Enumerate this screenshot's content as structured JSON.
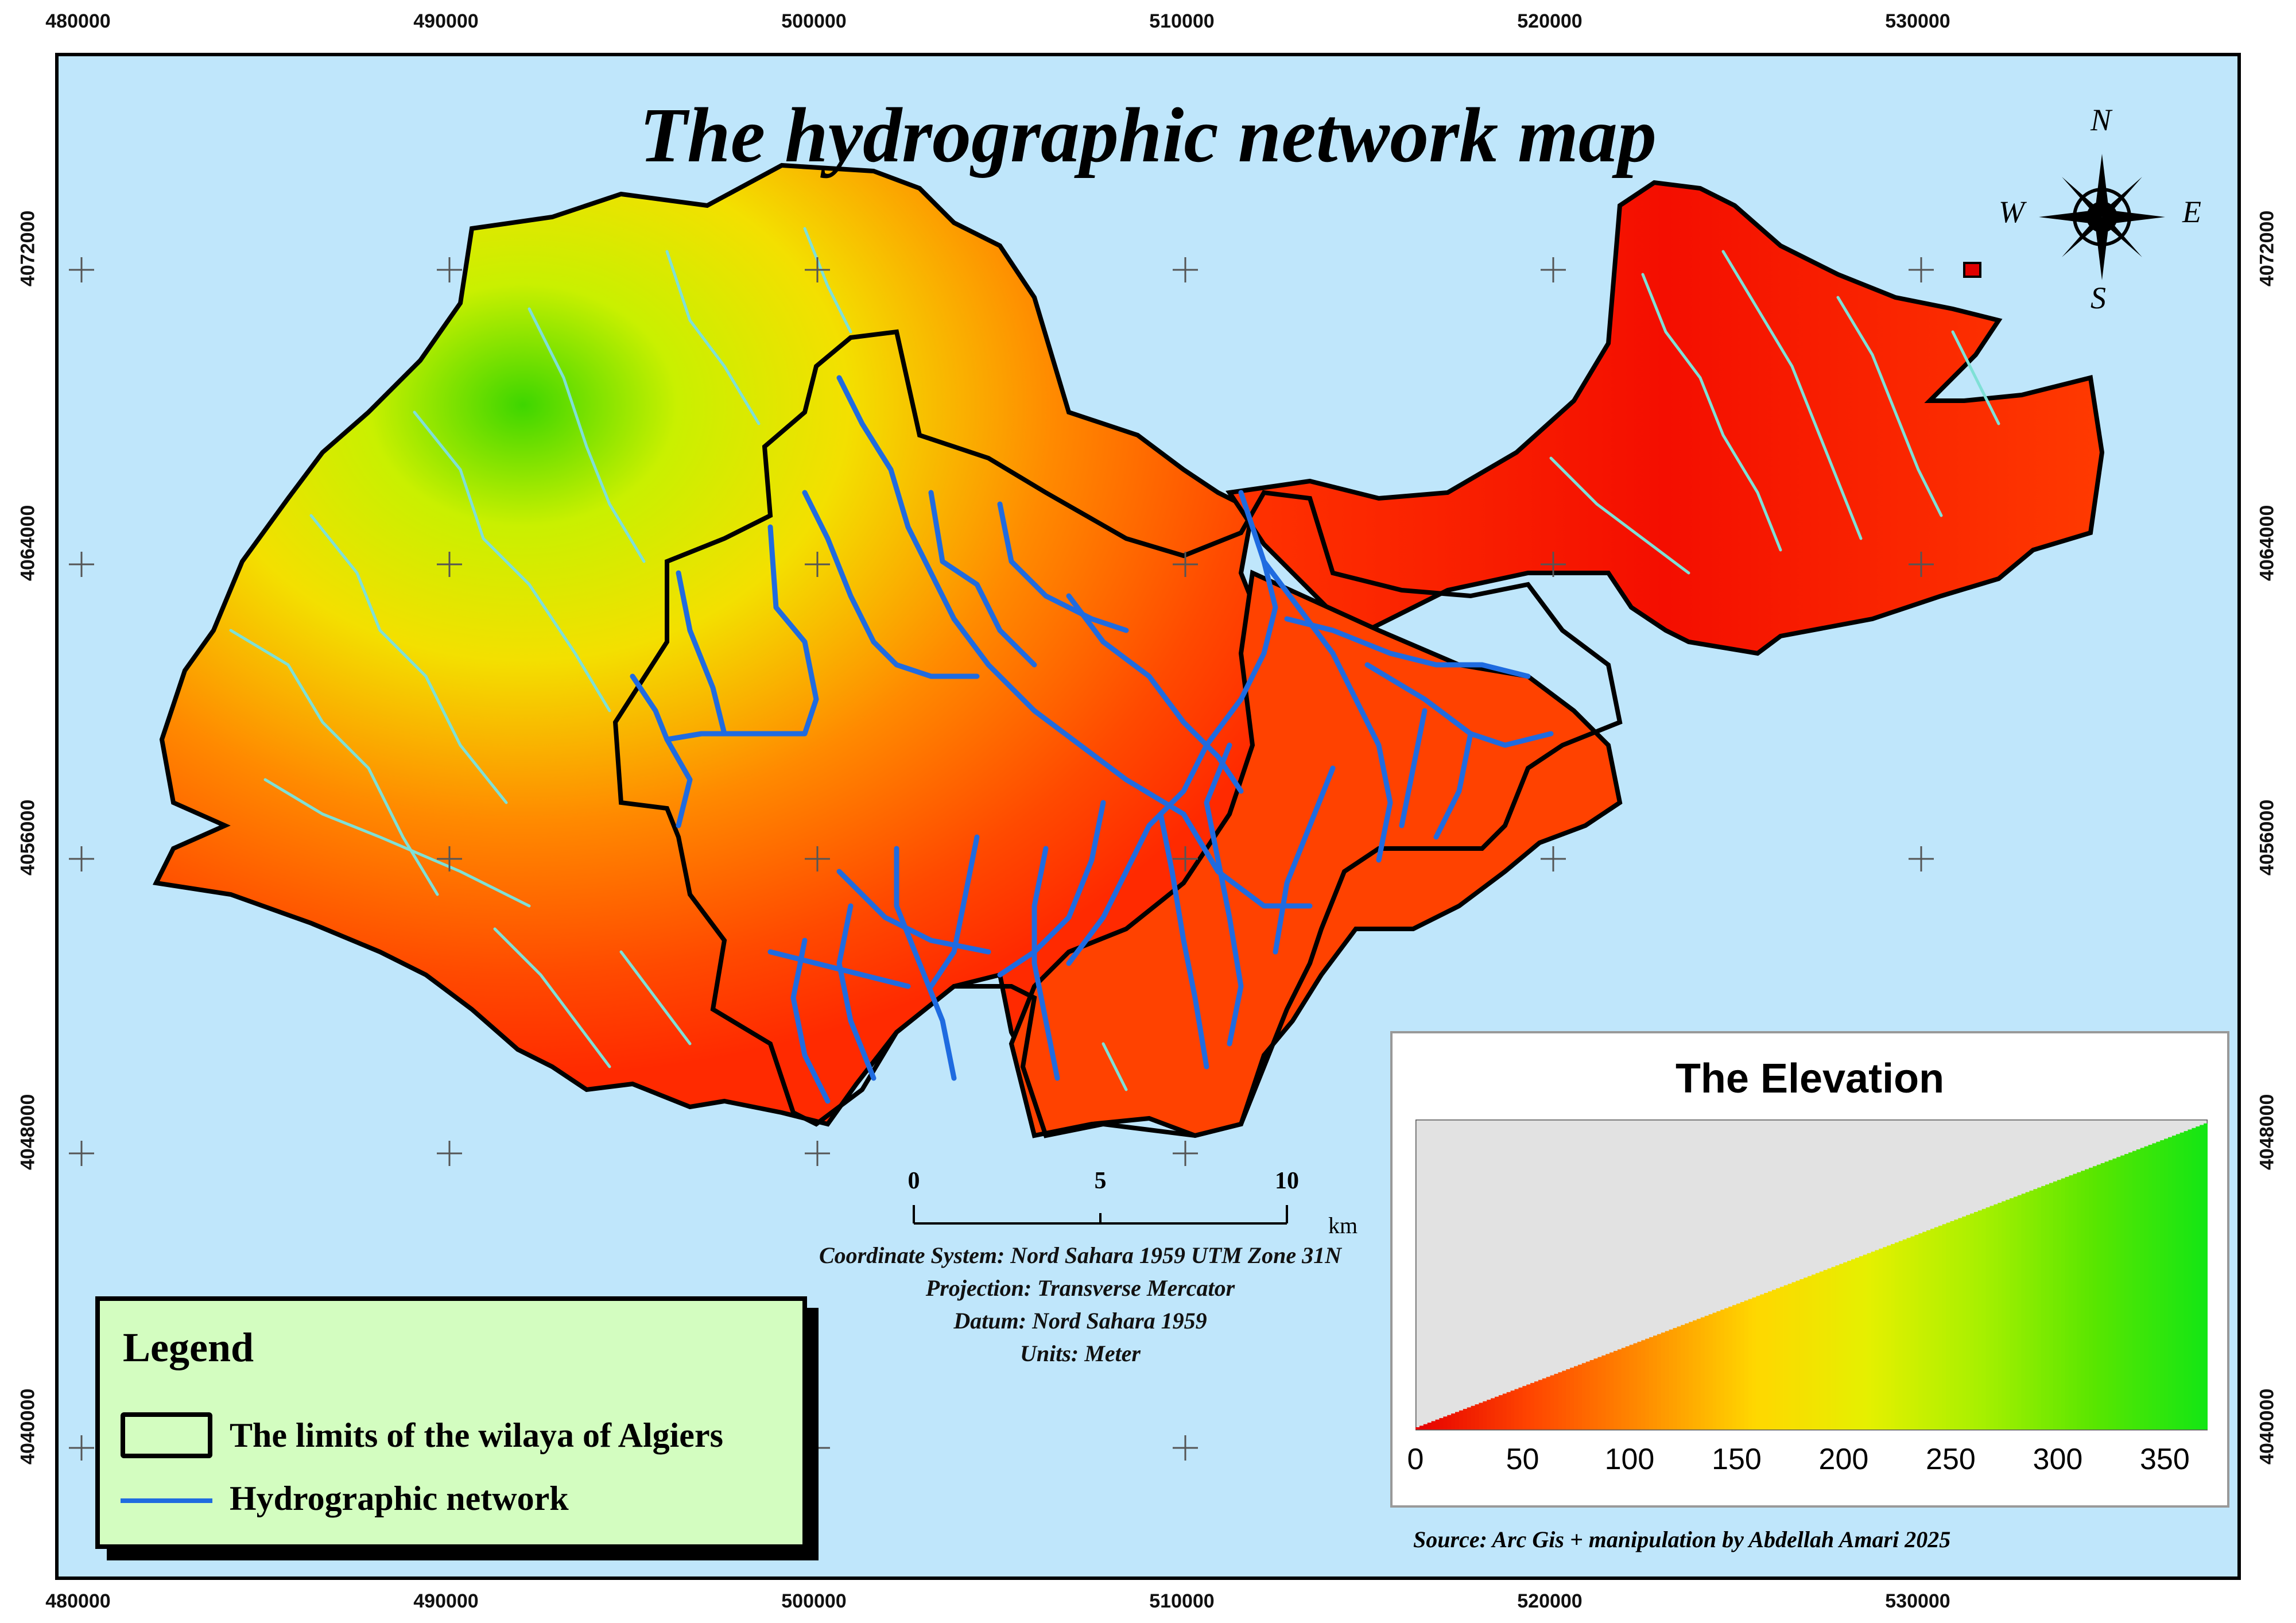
{
  "map": {
    "title": "The hydrographic network map",
    "x_ticks": [
      "480000",
      "490000",
      "500000",
      "510000",
      "520000",
      "530000"
    ],
    "y_ticks": [
      "4072000",
      "4064000",
      "4056000",
      "4048000",
      "4040000"
    ],
    "compass": {
      "n": "N",
      "s": "S",
      "e": "E",
      "w": "W"
    },
    "colors": {
      "sea": "#bfe6fb",
      "network": "#1f6be0",
      "tributaries": "#7fe0d6",
      "boundary": "#000000"
    }
  },
  "scale_bar": {
    "labels": [
      "0",
      "5",
      "10"
    ],
    "unit": "km"
  },
  "coordinate_info": [
    "Coordinate System: Nord Sahara 1959 UTM Zone 31N",
    "Projection: Transverse Mercator",
    "Datum: Nord Sahara 1959",
    "Units: Meter"
  ],
  "legend": {
    "title": "Legend",
    "limits_label": "The limits of the wilaya of Algiers",
    "network_label": "Hydrographic network"
  },
  "elevation": {
    "title": "The Elevation",
    "ticks": [
      "0",
      "50",
      "100",
      "150",
      "200",
      "250",
      "300",
      "350"
    ],
    "max": 370,
    "colors": [
      "#e60000",
      "#ff4500",
      "#ff8c00",
      "#ffd700",
      "#e5f000",
      "#a8f000",
      "#5ae600",
      "#14e614"
    ]
  },
  "source": "Source: Arc Gis + manipulation by Abdellah Amari 2025"
}
